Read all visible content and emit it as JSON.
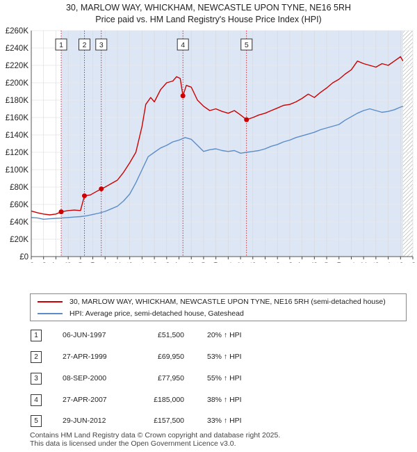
{
  "header": {
    "title": "30, MARLOW WAY, WHICKHAM, NEWCASTLE UPON TYNE, NE16 5RH",
    "subtitle": "Price paid vs. HM Land Registry's House Price Index (HPI)"
  },
  "legend": {
    "property_label": "30, MARLOW WAY, WHICKHAM, NEWCASTLE UPON TYNE, NE16 5RH (semi-detached house)",
    "hpi_label": "HPI: Average price, semi-detached house, Gateshead"
  },
  "sales": [
    {
      "num": "1",
      "date": "06-JUN-1997",
      "price": "£51,500",
      "hpi": "20% ↑ HPI"
    },
    {
      "num": "2",
      "date": "27-APR-1999",
      "price": "£69,950",
      "hpi": "53% ↑ HPI"
    },
    {
      "num": "3",
      "date": "08-SEP-2000",
      "price": "£77,950",
      "hpi": "55% ↑ HPI"
    },
    {
      "num": "4",
      "date": "27-APR-2007",
      "price": "£185,000",
      "hpi": "38% ↑ HPI"
    },
    {
      "num": "5",
      "date": "29-JUN-2012",
      "price": "£157,500",
      "hpi": "33% ↑ HPI"
    }
  ],
  "footer": {
    "line1": "Contains HM Land Registry data © Crown copyright and database right 2025.",
    "line2": "This data is licensed under the Open Government Licence v3.0."
  },
  "colors": {
    "property": "#cc0000",
    "hpi": "#5b8cc8",
    "shade": "#dde6f5",
    "marker": "#cc0000"
  },
  "chart_data": {
    "type": "line",
    "x_axis": {
      "min": 1995,
      "max": 2026,
      "ticks": [
        "1995",
        "1996",
        "1997",
        "1998",
        "1999",
        "2000",
        "2001",
        "2002",
        "2003",
        "2004",
        "2005",
        "2006",
        "2007",
        "2008",
        "2009",
        "2010",
        "2011",
        "2012",
        "2013",
        "2014",
        "2015",
        "2016",
        "2017",
        "2018",
        "2019",
        "2020",
        "2021",
        "2022",
        "2023",
        "2024",
        "2025",
        "2026"
      ]
    },
    "y_axis": {
      "min": 0,
      "max": 260000,
      "ticks": [
        "£0",
        "£20K",
        "£40K",
        "£60K",
        "£80K",
        "£100K",
        "£120K",
        "£140K",
        "£160K",
        "£180K",
        "£200K",
        "£220K",
        "£240K",
        "£260K"
      ]
    },
    "grid": true,
    "shaded_from": 1997.43,
    "forecast_hatch_from": 2025.2,
    "sale_markers": [
      {
        "label": "1",
        "x": 1997.43,
        "y": 51500
      },
      {
        "label": "2",
        "x": 1999.32,
        "y": 69950
      },
      {
        "label": "3",
        "x": 2000.69,
        "y": 77950
      },
      {
        "label": "4",
        "x": 2007.32,
        "y": 185000
      },
      {
        "label": "5",
        "x": 2012.49,
        "y": 157500
      }
    ],
    "series": [
      {
        "name": "30, MARLOW WAY, WHICKHAM, NEWCASTLE UPON TYNE, NE16 5RH (semi-detached house)",
        "points": [
          [
            1995.0,
            52500
          ],
          [
            1995.5,
            50500
          ],
          [
            1996.0,
            49000
          ],
          [
            1996.5,
            48000
          ],
          [
            1997.0,
            49000
          ],
          [
            1997.43,
            51500
          ],
          [
            1998.0,
            53000
          ],
          [
            1998.5,
            53500
          ],
          [
            1999.0,
            53000
          ],
          [
            1999.32,
            69950
          ],
          [
            1999.8,
            71000
          ],
          [
            2000.3,
            75000
          ],
          [
            2000.69,
            77950
          ],
          [
            2001.0,
            80000
          ],
          [
            2001.5,
            84000
          ],
          [
            2002.0,
            88000
          ],
          [
            2002.5,
            97000
          ],
          [
            2003.0,
            108000
          ],
          [
            2003.5,
            120000
          ],
          [
            2004.0,
            150000
          ],
          [
            2004.3,
            175000
          ],
          [
            2004.7,
            183000
          ],
          [
            2005.0,
            178000
          ],
          [
            2005.5,
            192000
          ],
          [
            2006.0,
            200000
          ],
          [
            2006.5,
            202000
          ],
          [
            2006.8,
            207000
          ],
          [
            2007.1,
            205000
          ],
          [
            2007.32,
            185000
          ],
          [
            2007.6,
            197000
          ],
          [
            2008.0,
            195000
          ],
          [
            2008.5,
            180000
          ],
          [
            2009.0,
            173000
          ],
          [
            2009.5,
            168000
          ],
          [
            2010.0,
            170000
          ],
          [
            2010.5,
            167000
          ],
          [
            2011.0,
            165000
          ],
          [
            2011.5,
            168000
          ],
          [
            2012.0,
            163000
          ],
          [
            2012.49,
            157500
          ],
          [
            2013.0,
            160000
          ],
          [
            2013.5,
            163000
          ],
          [
            2014.0,
            165000
          ],
          [
            2014.5,
            168000
          ],
          [
            2015.0,
            171000
          ],
          [
            2015.5,
            174000
          ],
          [
            2016.0,
            175000
          ],
          [
            2016.5,
            178000
          ],
          [
            2017.0,
            182000
          ],
          [
            2017.5,
            187000
          ],
          [
            2018.0,
            183000
          ],
          [
            2018.5,
            189000
          ],
          [
            2019.0,
            194000
          ],
          [
            2019.5,
            200000
          ],
          [
            2020.0,
            204000
          ],
          [
            2020.5,
            210000
          ],
          [
            2021.0,
            215000
          ],
          [
            2021.5,
            225000
          ],
          [
            2022.0,
            222000
          ],
          [
            2022.5,
            220000
          ],
          [
            2023.0,
            218000
          ],
          [
            2023.5,
            222000
          ],
          [
            2024.0,
            220000
          ],
          [
            2024.5,
            225000
          ],
          [
            2025.0,
            230000
          ],
          [
            2025.2,
            225000
          ]
        ]
      },
      {
        "name": "HPI: Average price, semi-detached house, Gateshead",
        "points": [
          [
            1995.0,
            45000
          ],
          [
            1995.5,
            44500
          ],
          [
            1996.0,
            43000
          ],
          [
            1996.5,
            43500
          ],
          [
            1997.0,
            44000
          ],
          [
            1997.5,
            44500
          ],
          [
            1998.0,
            45000
          ],
          [
            1998.5,
            45500
          ],
          [
            1999.0,
            46000
          ],
          [
            1999.5,
            47000
          ],
          [
            2000.0,
            48500
          ],
          [
            2000.5,
            50000
          ],
          [
            2001.0,
            52000
          ],
          [
            2001.5,
            55000
          ],
          [
            2002.0,
            58000
          ],
          [
            2002.5,
            64000
          ],
          [
            2003.0,
            72000
          ],
          [
            2003.5,
            85000
          ],
          [
            2004.0,
            100000
          ],
          [
            2004.5,
            115000
          ],
          [
            2005.0,
            120000
          ],
          [
            2005.5,
            125000
          ],
          [
            2006.0,
            128000
          ],
          [
            2006.5,
            132000
          ],
          [
            2007.0,
            134000
          ],
          [
            2007.5,
            137000
          ],
          [
            2008.0,
            135000
          ],
          [
            2008.5,
            128000
          ],
          [
            2009.0,
            121000
          ],
          [
            2009.5,
            123000
          ],
          [
            2010.0,
            124000
          ],
          [
            2010.5,
            122000
          ],
          [
            2011.0,
            121000
          ],
          [
            2011.5,
            122000
          ],
          [
            2012.0,
            119000
          ],
          [
            2012.5,
            120000
          ],
          [
            2013.0,
            121000
          ],
          [
            2013.5,
            122000
          ],
          [
            2014.0,
            124000
          ],
          [
            2014.5,
            127000
          ],
          [
            2015.0,
            129000
          ],
          [
            2015.5,
            132000
          ],
          [
            2016.0,
            134000
          ],
          [
            2016.5,
            137000
          ],
          [
            2017.0,
            139000
          ],
          [
            2017.5,
            141000
          ],
          [
            2018.0,
            143000
          ],
          [
            2018.5,
            146000
          ],
          [
            2019.0,
            148000
          ],
          [
            2019.5,
            150000
          ],
          [
            2020.0,
            152000
          ],
          [
            2020.5,
            157000
          ],
          [
            2021.0,
            161000
          ],
          [
            2021.5,
            165000
          ],
          [
            2022.0,
            168000
          ],
          [
            2022.5,
            170000
          ],
          [
            2023.0,
            168000
          ],
          [
            2023.5,
            166000
          ],
          [
            2024.0,
            167000
          ],
          [
            2024.5,
            169000
          ],
          [
            2025.0,
            172000
          ],
          [
            2025.2,
            173000
          ]
        ]
      }
    ]
  }
}
